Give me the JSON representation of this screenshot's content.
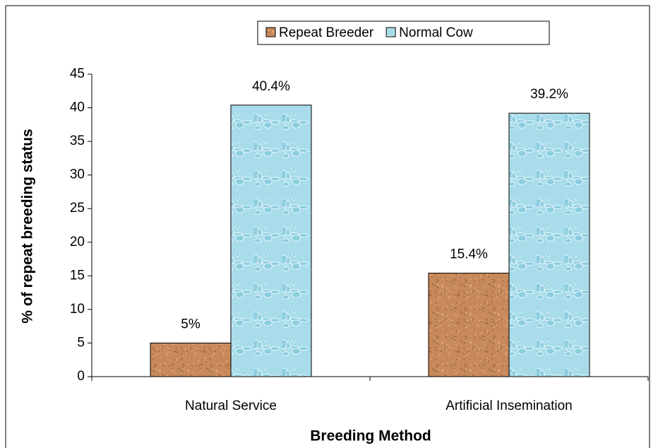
{
  "chart_data": {
    "type": "bar",
    "x_label": "Breeding Method",
    "y_label": "% of repeat breeding status",
    "categories": [
      "Natural Service",
      "Artificial Insemination"
    ],
    "series": [
      {
        "name": "Repeat Breeder",
        "color": "#c8895a",
        "values": [
          5,
          15.4
        ],
        "value_labels": [
          "5%",
          "15.4%"
        ]
      },
      {
        "name": "Normal Cow",
        "color": "#a8dcea",
        "values": [
          40.4,
          39.2
        ],
        "value_labels": [
          "40.4%",
          "39.2%"
        ]
      }
    ],
    "ylim": [
      0,
      45
    ],
    "yticks": [
      0,
      5,
      10,
      15,
      20,
      25,
      30,
      35,
      40,
      45
    ],
    "legend": "top"
  }
}
